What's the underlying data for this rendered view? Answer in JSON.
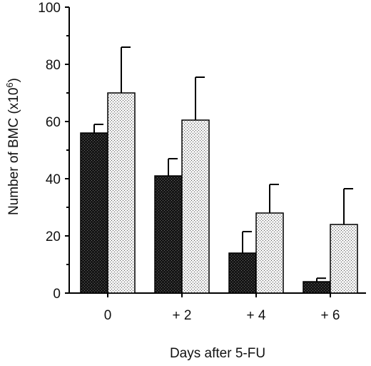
{
  "chart_data": {
    "type": "bar",
    "xlabel": "Days after 5-FU",
    "ylabel_prefix": "Number of BMC (x10",
    "ylabel_exponent": "6",
    "ylabel_suffix": ")",
    "ylim": [
      0,
      100
    ],
    "yticks": [
      0,
      20,
      40,
      60,
      80,
      100
    ],
    "categories": [
      "0",
      "+ 2",
      "+ 4",
      "+ 6"
    ],
    "series": [
      {
        "values": [
          56,
          41,
          14,
          4
        ],
        "errors": [
          3,
          6,
          7.5,
          1.2
        ],
        "fill": "dark-dots"
      },
      {
        "values": [
          70,
          60.5,
          28,
          24
        ],
        "errors": [
          16,
          15,
          10,
          12.5
        ],
        "fill": "light-dots"
      }
    ],
    "grid": false,
    "legend": "none",
    "colors": {
      "axis": "#000000",
      "dark_bar": "#1a1a1a",
      "light_bar": "#dcdcdc"
    }
  }
}
